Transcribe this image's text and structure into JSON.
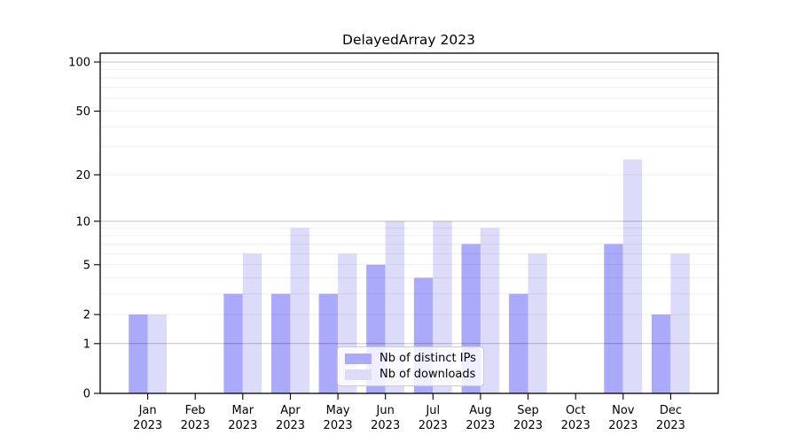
{
  "title": "DelayedArray 2023",
  "chart_data": {
    "type": "bar",
    "title": "DelayedArray 2023",
    "categories": [
      "Jan",
      "Feb",
      "Mar",
      "Apr",
      "May",
      "Jun",
      "Jul",
      "Aug",
      "Sep",
      "Oct",
      "Nov",
      "Dec"
    ],
    "category_year": "2023",
    "series": [
      {
        "name": "Nb of distinct IPs",
        "color": "#aaa9fa",
        "values": [
          2,
          0,
          3,
          3,
          3,
          5,
          4,
          7,
          3,
          0,
          7,
          2
        ]
      },
      {
        "name": "Nb of downloads",
        "color": "#dcdbfa",
        "values": [
          2,
          0,
          6,
          9,
          6,
          10,
          10,
          9,
          6,
          0,
          25,
          6
        ]
      }
    ],
    "xlabel": "",
    "ylabel": "",
    "yscale": "log1p",
    "ylim": [
      0,
      113
    ],
    "yticks": [
      0,
      1,
      2,
      5,
      10,
      20,
      50,
      100
    ],
    "grid_major": [
      1,
      10,
      100
    ],
    "grid_minor": [
      2,
      3,
      4,
      5,
      6,
      7,
      8,
      9,
      20,
      30,
      40,
      50,
      60,
      70,
      80,
      90
    ],
    "grid": "on",
    "legend_position": "lower center"
  }
}
